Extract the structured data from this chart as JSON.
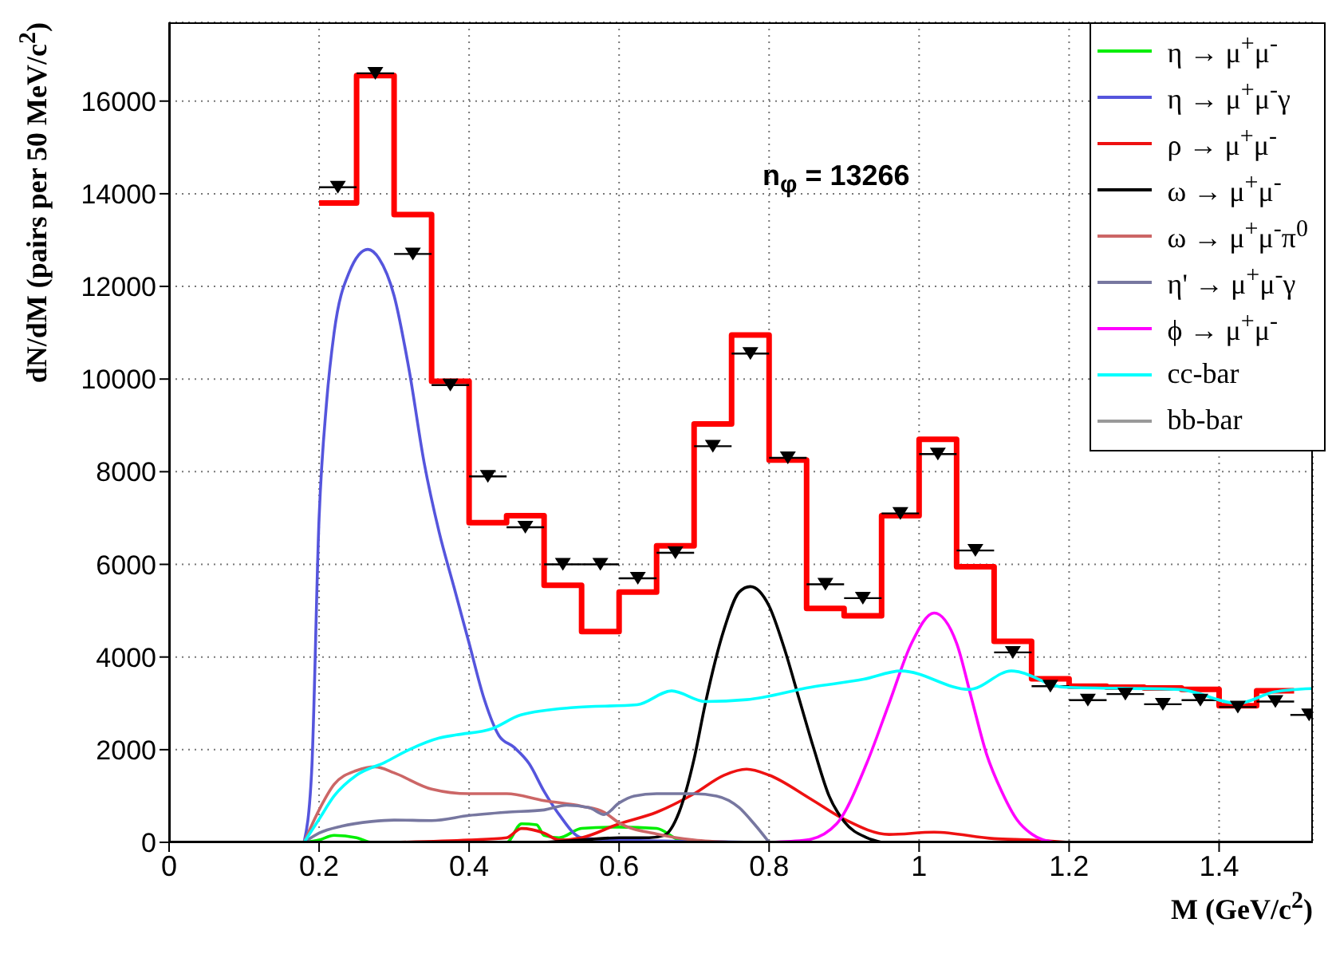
{
  "chart_data": {
    "type": "line",
    "xlabel": "M (GeV/c$^{2}$)",
    "ylabel": "dN/dM (pairs per 50 MeV/c$^{2}$)",
    "annotations": [
      "n$_{φ}$ = 13266"
    ],
    "xlim": [
      0,
      1.525
    ],
    "xticks": [
      0,
      0.2,
      0.4,
      0.6,
      0.8,
      1,
      1.2,
      1.4
    ],
    "ylim": [
      0,
      17700
    ],
    "yticks": [
      0,
      2000,
      4000,
      6000,
      8000,
      10000,
      12000,
      14000,
      16000
    ],
    "grid": true,
    "legend": "top right",
    "marker": "none",
    "line_style": "solid",
    "series": [
      {
        "type": "histogram",
        "color": "#ff0000",
        "bins": [
          0.2,
          0.25,
          0.3,
          0.35,
          0.4,
          0.45,
          0.5,
          0.55,
          0.6,
          0.65,
          0.7,
          0.75,
          0.8,
          0.85,
          0.9,
          0.95,
          1,
          1.05,
          1.1,
          1.15,
          1.2,
          1.25,
          1.3,
          1.35,
          1.4,
          1.45,
          1.5
        ],
        "values": [
          13800,
          16550,
          13550,
          9950,
          6900,
          7050,
          5550,
          4550,
          5400,
          6400,
          9030,
          10950,
          8250,
          5050,
          4890,
          7050,
          8700,
          5950,
          4340,
          3530,
          3370,
          3350,
          3330,
          3300,
          2950,
          3270
        ]
      },
      {
        "type": "scatter",
        "marker": "triangle",
        "color": "#000000",
        "x": [
          0.225,
          0.275,
          0.325,
          0.375,
          0.425,
          0.475,
          0.525,
          0.575,
          0.625,
          0.675,
          0.725,
          0.775,
          0.825,
          0.875,
          0.925,
          0.975,
          1.025,
          1.075,
          1.125,
          1.175,
          1.225,
          1.275,
          1.325,
          1.375,
          1.425,
          1.475,
          1.52
        ],
        "values": [
          14140,
          16600,
          12700,
          9870,
          7900,
          6800,
          6000,
          6000,
          5700,
          6250,
          8550,
          10550,
          8300,
          5570,
          5270,
          7100,
          8380,
          6300,
          4100,
          3370,
          3070,
          3200,
          2980,
          3070,
          2920,
          3040,
          2750
        ],
        "xerrors": [
          0.025,
          0.025,
          0.025,
          0.025,
          0.025,
          0.025,
          0.025,
          0.025,
          0.025,
          0.025,
          0.025,
          0.025,
          0.025,
          0.025,
          0.025,
          0.025,
          0.025,
          0.025,
          0.025,
          0.025,
          0.025,
          0.025,
          0.025,
          0.025,
          0.025,
          0.025,
          [
            1.495,
            1.525
          ]
        ]
      },
      {
        "name": "η  → μ$^{+}$μ$^{-}$",
        "color": "#00ee00",
        "x": [
          0.18,
          0.2,
          0.22,
          0.25,
          0.27,
          0.45,
          0.47,
          0.49,
          0.5,
          0.52,
          0.55,
          0.6,
          0.65,
          0.68,
          0.7
        ],
        "values": [
          0,
          50,
          150,
          100,
          0,
          0,
          400,
          380,
          150,
          100,
          300,
          330,
          300,
          50,
          0
        ]
      },
      {
        "name": "η → μ$^{+}$μ$^{-}$γ",
        "color": "#5555dd",
        "x": [
          0.18,
          0.19,
          0.2,
          0.21,
          0.22,
          0.24,
          0.265,
          0.28,
          0.3,
          0.32,
          0.34,
          0.36,
          0.38,
          0.4,
          0.42,
          0.44,
          0.46,
          0.48,
          0.5,
          0.52,
          0.55,
          0.6,
          0.8
        ],
        "values": [
          0,
          1500,
          7000,
          9500,
          11000,
          12300,
          12800,
          12600,
          11800,
          10200,
          8200,
          6700,
          5500,
          4300,
          3100,
          2300,
          2050,
          1700,
          1100,
          600,
          100,
          50,
          0
        ]
      },
      {
        "name": "ρ → μ$^{+}$μ$^{-}$",
        "color": "#ee1111",
        "x": [
          0.3,
          0.4,
          0.45,
          0.47,
          0.5,
          0.52,
          0.55,
          0.6,
          0.65,
          0.7,
          0.74,
          0.77,
          0.8,
          0.856,
          0.9,
          0.96,
          1.02,
          1.1,
          1.15,
          1.2
        ],
        "values": [
          0,
          50,
          100,
          300,
          200,
          50,
          100,
          400,
          650,
          1050,
          1450,
          1580,
          1450,
          930,
          500,
          170,
          220,
          80,
          50,
          0
        ]
      },
      {
        "name": "ω → μ$^{+}$μ$^{-}$",
        "color": "#000000",
        "x": [
          0.5,
          0.55,
          0.6,
          0.64,
          0.66,
          0.68,
          0.7,
          0.715,
          0.74,
          0.76,
          0.775,
          0.8,
          0.82,
          0.84,
          0.86,
          0.88,
          0.9,
          0.93,
          0.95
        ],
        "values": [
          0,
          50,
          100,
          100,
          150,
          650,
          1800,
          3000,
          4600,
          5400,
          5520,
          5100,
          4200,
          3100,
          2000,
          1000,
          450,
          100,
          0
        ]
      },
      {
        "name": "ω → μ$^{+}$μ$^{-}$π$^{0}$",
        "color": "#cc6666",
        "x": [
          0.18,
          0.2,
          0.22,
          0.25,
          0.275,
          0.3,
          0.35,
          0.4,
          0.45,
          0.5,
          0.55,
          0.58,
          0.6,
          0.65,
          0.7,
          0.75
        ],
        "values": [
          0,
          700,
          1250,
          1550,
          1630,
          1500,
          1150,
          1050,
          1050,
          900,
          780,
          650,
          420,
          180,
          50,
          0
        ]
      },
      {
        "name": "η' → μ$^{+}$μ$^{-}$γ",
        "color": "#7777a0",
        "x": [
          0.18,
          0.2,
          0.23,
          0.27,
          0.3,
          0.35,
          0.4,
          0.45,
          0.5,
          0.53,
          0.56,
          0.58,
          0.6,
          0.62,
          0.65,
          0.7,
          0.73,
          0.76,
          0.78,
          0.8
        ],
        "values": [
          0,
          200,
          350,
          450,
          480,
          470,
          580,
          650,
          700,
          800,
          750,
          600,
          850,
          1000,
          1050,
          1050,
          1000,
          750,
          400,
          0
        ]
      },
      {
        "name": "ϕ → μ$^{+}$μ$^{-}$",
        "color": "#ff00ff",
        "x": [
          0.8,
          0.85,
          0.89,
          0.93,
          0.96,
          0.99,
          1.02,
          1.05,
          1.07,
          1.09,
          1.11,
          1.13,
          1.15,
          1.18
        ],
        "values": [
          0,
          50,
          400,
          1700,
          3000,
          4300,
          4950,
          4300,
          3100,
          1900,
          1100,
          500,
          180,
          0
        ]
      },
      {
        "name": "cc-bar",
        "color": "#00ffff",
        "x": [
          0.18,
          0.2,
          0.22,
          0.25,
          0.288,
          0.32,
          0.36,
          0.383,
          0.43,
          0.469,
          0.539,
          0.624,
          0.67,
          0.715,
          0.77,
          0.856,
          0.926,
          0.976,
          1.067,
          1.123,
          1.193,
          1.347,
          1.425,
          1.474,
          1.523
        ],
        "values": [
          0,
          500,
          1000,
          1450,
          1730,
          2000,
          2250,
          2320,
          2450,
          2750,
          2910,
          2970,
          3270,
          3040,
          3080,
          3350,
          3520,
          3700,
          3300,
          3700,
          3350,
          3300,
          3000,
          3250,
          3320
        ]
      },
      {
        "name": "bb-bar",
        "color": "#999999"
      }
    ]
  }
}
